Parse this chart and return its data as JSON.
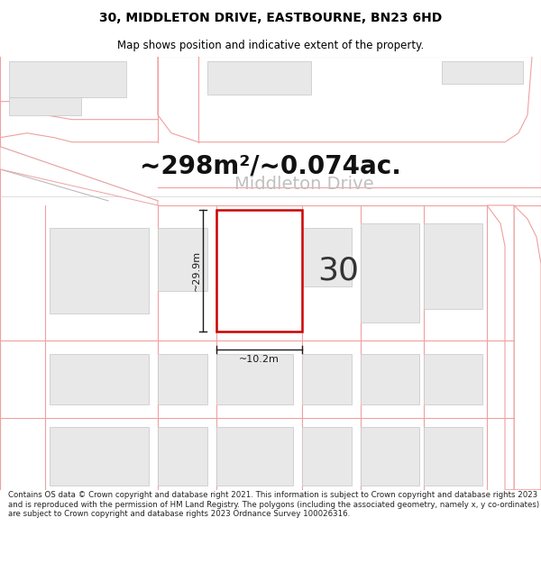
{
  "title": "30, MIDDLETON DRIVE, EASTBOURNE, BN23 6HD",
  "subtitle": "Map shows position and indicative extent of the property.",
  "area_text": "~298m²/~0.074ac.",
  "street_name": "Middleton Drive",
  "property_number": "30",
  "dim_height": "~29.9m",
  "dim_width": "~10.2m",
  "footer": "Contains OS data © Crown copyright and database right 2021. This information is subject to Crown copyright and database rights 2023 and is reproduced with the permission of HM Land Registry. The polygons (including the associated geometry, namely x, y co-ordinates) are subject to Crown copyright and database rights 2023 Ordnance Survey 100026316.",
  "bg_color": "#ffffff",
  "map_bg": "#ffffff",
  "road_outline": "#f0a0a0",
  "building_fill": "#e8e8e8",
  "building_edge": "#cccccc",
  "property_fill": "#ffffff",
  "property_edge": "#cc0000",
  "dim_line_color": "#1a1a1a",
  "gray_line": "#aaaaaa",
  "title_fontsize": 10,
  "subtitle_fontsize": 8.5,
  "area_fontsize": 20,
  "street_fontsize": 14,
  "number_fontsize": 26,
  "dim_fontsize": 8,
  "footer_fontsize": 6.2
}
